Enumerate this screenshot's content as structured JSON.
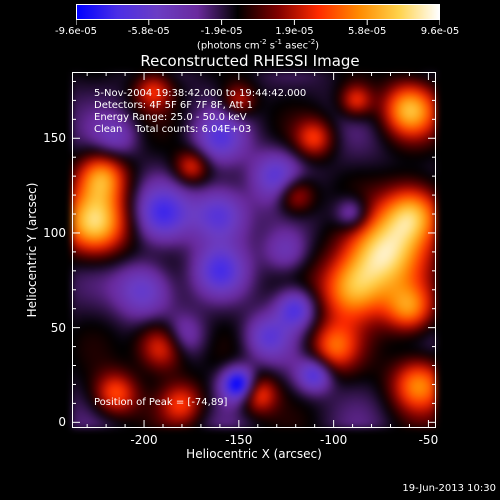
{
  "colorbar": {
    "gradient": [
      "#0000ff",
      "#4a2ee6",
      "#6b3dc4",
      "#6a2a9e",
      "#000000",
      "#800000",
      "#ff2a00",
      "#ff8a00",
      "#ffd24a",
      "#ffffff"
    ],
    "tick_labels": [
      "-9.6e-05",
      "-5.8e-05",
      "-1.9e-05",
      "1.9e-05",
      "5.8e-05",
      "9.6e-05"
    ],
    "units_base": "(photons cm",
    "units_exp1": "-2",
    "units_mid1": " s",
    "units_exp2": "-1",
    "units_mid2": " asec",
    "units_exp3": "-2",
    "units_end": ")"
  },
  "annotations": {
    "time_range": "5-Nov-2004 19:38:42.000 to 19:44:42.000",
    "detectors": "Detectors: 4F 5F 6F 7F 8F, Att 1",
    "energy_range": "Energy Range: 25.0 - 50.0 keV",
    "clean": "Clean    Total counts: 6.04E+03",
    "peak": "Position of Peak = [-74,89]"
  },
  "timestamp": "19-Jun-2013 10:30",
  "chart_data": {
    "type": "heatmap",
    "title": "Reconstructed RHESSI Image",
    "xlabel": "Heliocentric X (arcsec)",
    "ylabel": "Heliocentric Y (arcsec)",
    "xlim": [
      -238,
      -46
    ],
    "ylim": [
      -3,
      185
    ],
    "x_ticks": [
      -200,
      -150,
      -100,
      -50
    ],
    "y_ticks": [
      0,
      50,
      100,
      150
    ],
    "value_range": [
      -9.6e-05,
      9.6e-05
    ],
    "colormap": "blue-purple-black-red-yellow-white (signed)",
    "peak_position": [
      -74,
      89
    ],
    "blobs": [
      {
        "x": -74,
        "y": 89,
        "sigma": 14,
        "amp": 1.0
      },
      {
        "x": -58,
        "y": 110,
        "sigma": 11,
        "amp": 0.9
      },
      {
        "x": -90,
        "y": 70,
        "sigma": 12,
        "amp": 0.8
      },
      {
        "x": -60,
        "y": 165,
        "sigma": 10,
        "amp": 0.85
      },
      {
        "x": -100,
        "y": 40,
        "sigma": 9,
        "amp": 0.6
      },
      {
        "x": -60,
        "y": 60,
        "sigma": 9,
        "amp": 0.7
      },
      {
        "x": -55,
        "y": 20,
        "sigma": 10,
        "amp": 0.75
      },
      {
        "x": -226,
        "y": 105,
        "sigma": 12,
        "amp": 0.95
      },
      {
        "x": -222,
        "y": 130,
        "sigma": 9,
        "amp": 0.7
      },
      {
        "x": -190,
        "y": 40,
        "sigma": 9,
        "amp": 0.7
      },
      {
        "x": -215,
        "y": 15,
        "sigma": 8,
        "amp": 0.6
      },
      {
        "x": -180,
        "y": 10,
        "sigma": 8,
        "amp": 0.5
      },
      {
        "x": -140,
        "y": 15,
        "sigma": 7,
        "amp": 0.6
      },
      {
        "x": -120,
        "y": 120,
        "sigma": 7,
        "amp": 0.55
      },
      {
        "x": -110,
        "y": 150,
        "sigma": 7,
        "amp": 0.5
      },
      {
        "x": -150,
        "y": 170,
        "sigma": 6,
        "amp": 0.45
      },
      {
        "x": -195,
        "y": 175,
        "sigma": 7,
        "amp": 0.5
      },
      {
        "x": -175,
        "y": 135,
        "sigma": 6,
        "amp": 0.5
      },
      {
        "x": -88,
        "y": 170,
        "sigma": 6,
        "amp": 0.55
      },
      {
        "x": -120,
        "y": 60,
        "sigma": 7,
        "amp": -0.6
      },
      {
        "x": -160,
        "y": 110,
        "sigma": 10,
        "amp": -0.6
      },
      {
        "x": -190,
        "y": 110,
        "sigma": 10,
        "amp": -0.55
      },
      {
        "x": -160,
        "y": 80,
        "sigma": 9,
        "amp": -0.5
      },
      {
        "x": -130,
        "y": 130,
        "sigma": 9,
        "amp": -0.5
      },
      {
        "x": -160,
        "y": 150,
        "sigma": 9,
        "amp": -0.45
      },
      {
        "x": -200,
        "y": 70,
        "sigma": 10,
        "amp": -0.5
      },
      {
        "x": -150,
        "y": 20,
        "sigma": 6,
        "amp": -1.0
      },
      {
        "x": -110,
        "y": 25,
        "sigma": 6,
        "amp": -0.6
      },
      {
        "x": -90,
        "y": 110,
        "sigma": 6,
        "amp": -0.45
      },
      {
        "x": -125,
        "y": 90,
        "sigma": 8,
        "amp": -0.35
      },
      {
        "x": -215,
        "y": 150,
        "sigma": 8,
        "amp": -0.3
      },
      {
        "x": -135,
        "y": 45,
        "sigma": 8,
        "amp": -0.45
      },
      {
        "x": -180,
        "y": 45,
        "sigma": 8,
        "amp": -0.4
      }
    ]
  }
}
